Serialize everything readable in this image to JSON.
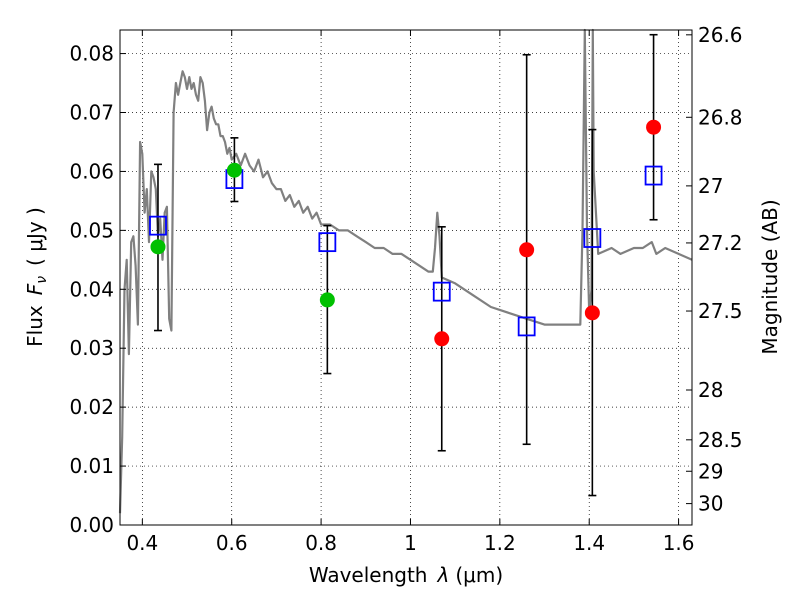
{
  "chart_data": {
    "type": "scatter",
    "xlabel_text": "Wavelength",
    "xlabel_math": "λ",
    "xlabel_unit": "(μm)",
    "ylabel_text": "Flux",
    "ylabel_math": "F",
    "ylabel_math_sub": "ν",
    "ylabel_unit": "( μJy )",
    "y2label": "Magnitude (AB)",
    "xlim": [
      0.35,
      1.63
    ],
    "ylim": [
      0.0,
      0.084
    ],
    "grid": true,
    "xticks": [
      {
        "v": 0.4,
        "label": "0.4"
      },
      {
        "v": 0.6,
        "label": "0.6"
      },
      {
        "v": 0.8,
        "label": "0.8"
      },
      {
        "v": 1.0,
        "label": "1"
      },
      {
        "v": 1.2,
        "label": "1.2"
      },
      {
        "v": 1.4,
        "label": "1.4"
      },
      {
        "v": 1.6,
        "label": "1.6"
      }
    ],
    "yticks": [
      {
        "v": 0.0,
        "label": "0.00"
      },
      {
        "v": 0.01,
        "label": "0.01"
      },
      {
        "v": 0.02,
        "label": "0.02"
      },
      {
        "v": 0.03,
        "label": "0.03"
      },
      {
        "v": 0.04,
        "label": "0.04"
      },
      {
        "v": 0.05,
        "label": "0.05"
      },
      {
        "v": 0.06,
        "label": "0.06"
      },
      {
        "v": 0.07,
        "label": "0.07"
      },
      {
        "v": 0.08,
        "label": "0.08"
      }
    ],
    "y2ticks": [
      {
        "mag": 26.6,
        "label": "26.6"
      },
      {
        "mag": 26.8,
        "label": "26.8"
      },
      {
        "mag": 27.0,
        "label": "27"
      },
      {
        "mag": 27.2,
        "label": "27.2"
      },
      {
        "mag": 27.5,
        "label": "27.5"
      },
      {
        "mag": 28.0,
        "label": "28"
      },
      {
        "mag": 28.5,
        "label": "28.5"
      },
      {
        "mag": 29.0,
        "label": "29"
      },
      {
        "mag": 30.0,
        "label": "30"
      }
    ],
    "colors": {
      "model": "#808080",
      "green": "#00c000",
      "red": "#ff0000",
      "square": "#0000ff",
      "errorbar": "#000000"
    },
    "model_sed": [
      [
        0.35,
        0.002
      ],
      [
        0.355,
        0.015
      ],
      [
        0.36,
        0.04
      ],
      [
        0.365,
        0.045
      ],
      [
        0.37,
        0.029
      ],
      [
        0.375,
        0.048
      ],
      [
        0.38,
        0.049
      ],
      [
        0.385,
        0.044
      ],
      [
        0.39,
        0.034
      ],
      [
        0.395,
        0.065
      ],
      [
        0.4,
        0.063
      ],
      [
        0.405,
        0.053
      ],
      [
        0.41,
        0.057
      ],
      [
        0.415,
        0.048
      ],
      [
        0.42,
        0.06
      ],
      [
        0.425,
        0.059
      ],
      [
        0.43,
        0.057
      ],
      [
        0.435,
        0.049
      ],
      [
        0.44,
        0.052
      ],
      [
        0.445,
        0.045
      ],
      [
        0.45,
        0.053
      ],
      [
        0.455,
        0.054
      ],
      [
        0.46,
        0.035
      ],
      [
        0.465,
        0.033
      ],
      [
        0.47,
        0.07
      ],
      [
        0.475,
        0.075
      ],
      [
        0.48,
        0.073
      ],
      [
        0.485,
        0.075
      ],
      [
        0.49,
        0.077
      ],
      [
        0.495,
        0.076
      ],
      [
        0.5,
        0.074
      ],
      [
        0.505,
        0.076
      ],
      [
        0.51,
        0.074
      ],
      [
        0.515,
        0.075
      ],
      [
        0.52,
        0.073
      ],
      [
        0.525,
        0.072
      ],
      [
        0.53,
        0.076
      ],
      [
        0.535,
        0.075
      ],
      [
        0.54,
        0.072
      ],
      [
        0.545,
        0.067
      ],
      [
        0.55,
        0.07
      ],
      [
        0.555,
        0.071
      ],
      [
        0.56,
        0.069
      ],
      [
        0.565,
        0.068
      ],
      [
        0.57,
        0.068
      ],
      [
        0.575,
        0.066
      ],
      [
        0.58,
        0.066
      ],
      [
        0.585,
        0.065
      ],
      [
        0.59,
        0.063
      ],
      [
        0.595,
        0.064
      ],
      [
        0.6,
        0.062
      ],
      [
        0.61,
        0.063
      ],
      [
        0.62,
        0.061
      ],
      [
        0.63,
        0.063
      ],
      [
        0.64,
        0.061
      ],
      [
        0.65,
        0.06
      ],
      [
        0.66,
        0.062
      ],
      [
        0.67,
        0.059
      ],
      [
        0.68,
        0.06
      ],
      [
        0.69,
        0.058
      ],
      [
        0.7,
        0.057
      ],
      [
        0.71,
        0.057
      ],
      [
        0.72,
        0.055
      ],
      [
        0.73,
        0.056
      ],
      [
        0.74,
        0.054
      ],
      [
        0.75,
        0.055
      ],
      [
        0.76,
        0.053
      ],
      [
        0.77,
        0.054
      ],
      [
        0.78,
        0.052
      ],
      [
        0.79,
        0.053
      ],
      [
        0.8,
        0.051
      ],
      [
        0.82,
        0.051
      ],
      [
        0.84,
        0.05
      ],
      [
        0.86,
        0.05
      ],
      [
        0.88,
        0.049
      ],
      [
        0.9,
        0.048
      ],
      [
        0.92,
        0.047
      ],
      [
        0.94,
        0.047
      ],
      [
        0.96,
        0.046
      ],
      [
        0.98,
        0.046
      ],
      [
        1.0,
        0.045
      ],
      [
        1.02,
        0.044
      ],
      [
        1.04,
        0.043
      ],
      [
        1.05,
        0.043
      ],
      [
        1.055,
        0.047
      ],
      [
        1.06,
        0.053
      ],
      [
        1.065,
        0.049
      ],
      [
        1.07,
        0.042
      ],
      [
        1.1,
        0.041
      ],
      [
        1.14,
        0.039
      ],
      [
        1.18,
        0.037
      ],
      [
        1.22,
        0.036
      ],
      [
        1.26,
        0.035
      ],
      [
        1.3,
        0.034
      ],
      [
        1.33,
        0.034
      ],
      [
        1.36,
        0.034
      ],
      [
        1.38,
        0.034
      ],
      [
        1.385,
        0.05
      ],
      [
        1.39,
        0.084
      ],
      [
        1.395,
        0.05
      ],
      [
        1.4,
        0.036
      ],
      [
        1.405,
        0.04
      ],
      [
        1.408,
        0.084
      ],
      [
        1.41,
        0.06
      ],
      [
        1.42,
        0.046
      ],
      [
        1.45,
        0.047
      ],
      [
        1.47,
        0.046
      ],
      [
        1.5,
        0.047
      ],
      [
        1.52,
        0.047
      ],
      [
        1.54,
        0.048
      ],
      [
        1.55,
        0.046
      ],
      [
        1.57,
        0.047
      ],
      [
        1.6,
        0.046
      ],
      [
        1.63,
        0.045
      ]
    ],
    "squares": [
      {
        "x": 0.435,
        "y": 0.0508
      },
      {
        "x": 0.606,
        "y": 0.0587
      },
      {
        "x": 0.814,
        "y": 0.048
      },
      {
        "x": 1.07,
        "y": 0.0396
      },
      {
        "x": 1.26,
        "y": 0.0337
      },
      {
        "x": 1.407,
        "y": 0.0487
      },
      {
        "x": 1.544,
        "y": 0.0593
      }
    ],
    "errorbars": [
      {
        "x": 0.435,
        "y": 0.0472,
        "lo": 0.033,
        "hi": 0.0612
      },
      {
        "x": 0.606,
        "y": 0.0602,
        "lo": 0.0549,
        "hi": 0.0657
      },
      {
        "x": 0.814,
        "y": 0.0382,
        "lo": 0.0257,
        "hi": 0.0508
      },
      {
        "x": 1.07,
        "y": 0.0316,
        "lo": 0.0126,
        "hi": 0.0506
      },
      {
        "x": 1.26,
        "y": 0.0467,
        "lo": 0.0137,
        "hi": 0.0798
      },
      {
        "x": 1.407,
        "y": 0.036,
        "lo": 0.005,
        "hi": 0.0671
      },
      {
        "x": 1.544,
        "y": 0.0675,
        "lo": 0.0518,
        "hi": 0.0832
      }
    ],
    "green_points": [
      {
        "x": 0.435,
        "y": 0.0472
      },
      {
        "x": 0.606,
        "y": 0.0602
      },
      {
        "x": 0.814,
        "y": 0.0382
      }
    ],
    "red_points": [
      {
        "x": 1.07,
        "y": 0.0316
      },
      {
        "x": 1.26,
        "y": 0.0467
      },
      {
        "x": 1.407,
        "y": 0.036
      },
      {
        "x": 1.544,
        "y": 0.0675
      }
    ]
  }
}
